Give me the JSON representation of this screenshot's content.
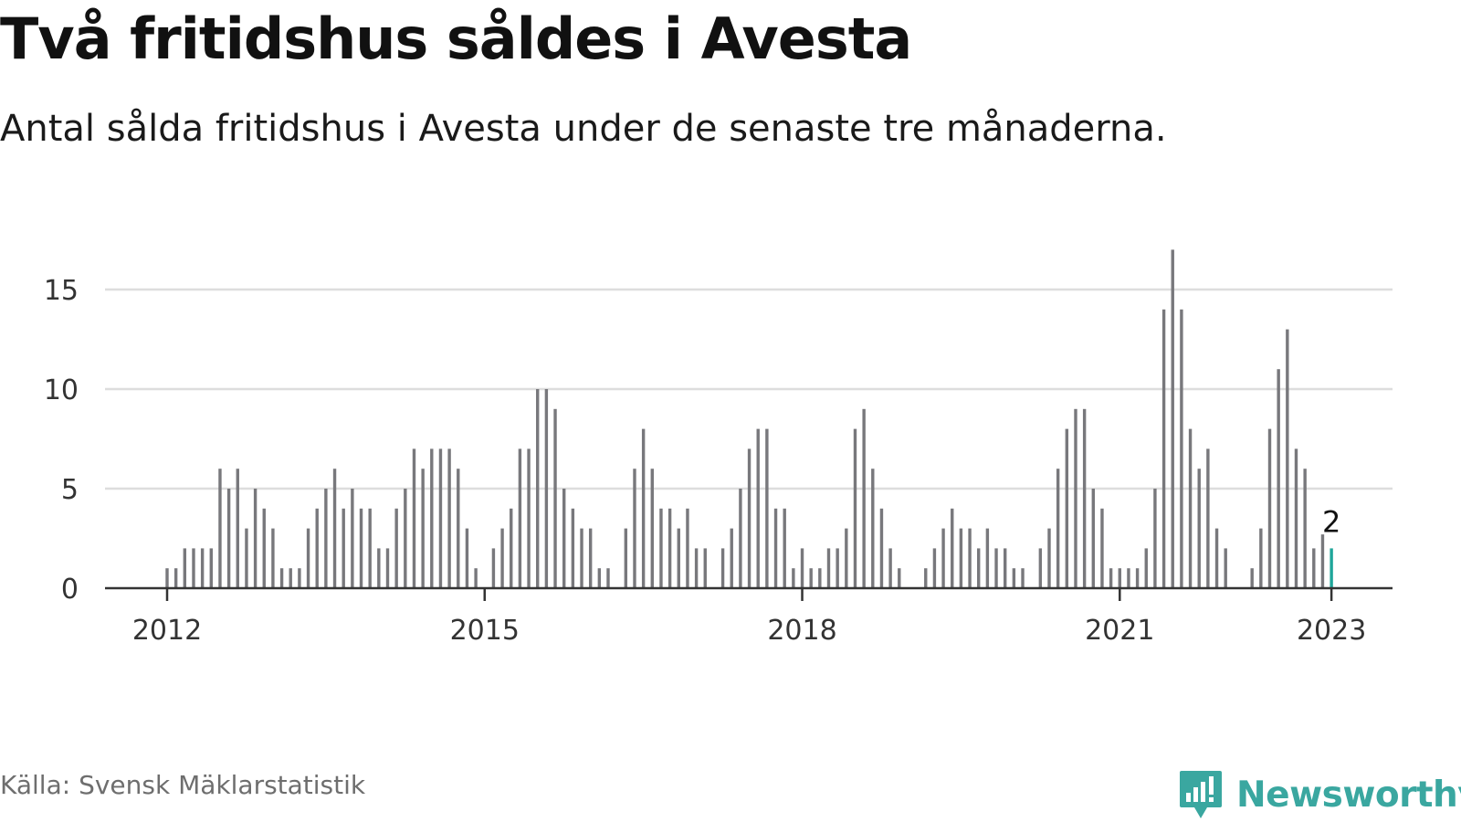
{
  "title": "Två fritidshus såldes i Avesta",
  "subtitle": "Antal sålda fritidshus i Avesta under de senaste tre månaderna.",
  "source": "Källa: Svensk Mäklarstatistik",
  "brand": {
    "name": "Newsworthy",
    "icon": "newsworthy-chart-bubble-icon",
    "color": "#3aa7a0"
  },
  "colors": {
    "bar": "#78787c",
    "highlight": "#1fa69a",
    "grid": "#dddddd",
    "axis": "#333333"
  },
  "chart_data": {
    "type": "bar",
    "title": "Två fritidshus såldes i Avesta",
    "xlabel": "",
    "ylabel": "",
    "ylim": [
      0,
      17
    ],
    "y_ticks": [
      0,
      5,
      10,
      15
    ],
    "x_ticks": [
      {
        "date": "2012-01",
        "label": "2012"
      },
      {
        "date": "2015-01",
        "label": "2015"
      },
      {
        "date": "2018-01",
        "label": "2018"
      },
      {
        "date": "2021-01",
        "label": "2021"
      },
      {
        "date": "2023-01",
        "label": "2023"
      }
    ],
    "grid": true,
    "annotation": {
      "date": "2023-01",
      "label": "2"
    },
    "highlight_date": "2023-01",
    "series": [
      {
        "values": [
          {
            "x": "2012-01",
            "y": 1
          },
          {
            "x": "2012-02",
            "y": 1
          },
          {
            "x": "2012-03",
            "y": 2
          },
          {
            "x": "2012-04",
            "y": 2
          },
          {
            "x": "2012-05",
            "y": 2
          },
          {
            "x": "2012-06",
            "y": 2
          },
          {
            "x": "2012-07",
            "y": 6
          },
          {
            "x": "2012-08",
            "y": 5
          },
          {
            "x": "2012-09",
            "y": 6
          },
          {
            "x": "2012-10",
            "y": 3
          },
          {
            "x": "2012-11",
            "y": 5
          },
          {
            "x": "2012-12",
            "y": 4
          },
          {
            "x": "2013-01",
            "y": 3
          },
          {
            "x": "2013-02",
            "y": 1
          },
          {
            "x": "2013-03",
            "y": 1
          },
          {
            "x": "2013-04",
            "y": 1
          },
          {
            "x": "2013-05",
            "y": 3
          },
          {
            "x": "2013-06",
            "y": 4
          },
          {
            "x": "2013-07",
            "y": 5
          },
          {
            "x": "2013-08",
            "y": 6
          },
          {
            "x": "2013-09",
            "y": 4
          },
          {
            "x": "2013-10",
            "y": 5
          },
          {
            "x": "2013-11",
            "y": 4
          },
          {
            "x": "2013-12",
            "y": 4
          },
          {
            "x": "2014-01",
            "y": 2
          },
          {
            "x": "2014-02",
            "y": 2
          },
          {
            "x": "2014-03",
            "y": 4
          },
          {
            "x": "2014-04",
            "y": 5
          },
          {
            "x": "2014-05",
            "y": 7
          },
          {
            "x": "2014-06",
            "y": 6
          },
          {
            "x": "2014-07",
            "y": 7
          },
          {
            "x": "2014-08",
            "y": 7
          },
          {
            "x": "2014-09",
            "y": 7
          },
          {
            "x": "2014-10",
            "y": 6
          },
          {
            "x": "2014-11",
            "y": 3
          },
          {
            "x": "2014-12",
            "y": 1
          },
          {
            "x": "2015-02",
            "y": 2
          },
          {
            "x": "2015-03",
            "y": 3
          },
          {
            "x": "2015-04",
            "y": 4
          },
          {
            "x": "2015-05",
            "y": 7
          },
          {
            "x": "2015-06",
            "y": 7
          },
          {
            "x": "2015-07",
            "y": 10
          },
          {
            "x": "2015-08",
            "y": 10
          },
          {
            "x": "2015-09",
            "y": 9
          },
          {
            "x": "2015-10",
            "y": 5
          },
          {
            "x": "2015-11",
            "y": 4
          },
          {
            "x": "2015-12",
            "y": 3
          },
          {
            "x": "2016-01",
            "y": 3
          },
          {
            "x": "2016-02",
            "y": 1
          },
          {
            "x": "2016-03",
            "y": 1
          },
          {
            "x": "2016-05",
            "y": 3
          },
          {
            "x": "2016-06",
            "y": 6
          },
          {
            "x": "2016-07",
            "y": 8
          },
          {
            "x": "2016-08",
            "y": 6
          },
          {
            "x": "2016-09",
            "y": 4
          },
          {
            "x": "2016-10",
            "y": 4
          },
          {
            "x": "2016-11",
            "y": 3
          },
          {
            "x": "2016-12",
            "y": 4
          },
          {
            "x": "2017-01",
            "y": 2
          },
          {
            "x": "2017-02",
            "y": 2
          },
          {
            "x": "2017-04",
            "y": 2
          },
          {
            "x": "2017-05",
            "y": 3
          },
          {
            "x": "2017-06",
            "y": 5
          },
          {
            "x": "2017-07",
            "y": 7
          },
          {
            "x": "2017-08",
            "y": 8
          },
          {
            "x": "2017-09",
            "y": 8
          },
          {
            "x": "2017-10",
            "y": 4
          },
          {
            "x": "2017-11",
            "y": 4
          },
          {
            "x": "2017-12",
            "y": 1
          },
          {
            "x": "2018-01",
            "y": 2
          },
          {
            "x": "2018-02",
            "y": 1
          },
          {
            "x": "2018-03",
            "y": 1
          },
          {
            "x": "2018-04",
            "y": 2
          },
          {
            "x": "2018-05",
            "y": 2
          },
          {
            "x": "2018-06",
            "y": 3
          },
          {
            "x": "2018-07",
            "y": 8
          },
          {
            "x": "2018-08",
            "y": 9
          },
          {
            "x": "2018-09",
            "y": 6
          },
          {
            "x": "2018-10",
            "y": 4
          },
          {
            "x": "2018-11",
            "y": 2
          },
          {
            "x": "2018-12",
            "y": 1
          },
          {
            "x": "2019-03",
            "y": 1
          },
          {
            "x": "2019-04",
            "y": 2
          },
          {
            "x": "2019-05",
            "y": 3
          },
          {
            "x": "2019-06",
            "y": 4
          },
          {
            "x": "2019-07",
            "y": 3
          },
          {
            "x": "2019-08",
            "y": 3
          },
          {
            "x": "2019-09",
            "y": 2
          },
          {
            "x": "2019-10",
            "y": 3
          },
          {
            "x": "2019-11",
            "y": 2
          },
          {
            "x": "2019-12",
            "y": 2
          },
          {
            "x": "2020-01",
            "y": 1
          },
          {
            "x": "2020-02",
            "y": 1
          },
          {
            "x": "2020-04",
            "y": 2
          },
          {
            "x": "2020-05",
            "y": 3
          },
          {
            "x": "2020-06",
            "y": 6
          },
          {
            "x": "2020-07",
            "y": 8
          },
          {
            "x": "2020-08",
            "y": 9
          },
          {
            "x": "2020-09",
            "y": 9
          },
          {
            "x": "2020-10",
            "y": 5
          },
          {
            "x": "2020-11",
            "y": 4
          },
          {
            "x": "2020-12",
            "y": 1
          },
          {
            "x": "2021-01",
            "y": 1
          },
          {
            "x": "2021-02",
            "y": 1
          },
          {
            "x": "2021-03",
            "y": 1
          },
          {
            "x": "2021-04",
            "y": 2
          },
          {
            "x": "2021-05",
            "y": 5
          },
          {
            "x": "2021-06",
            "y": 14
          },
          {
            "x": "2021-07",
            "y": 17
          },
          {
            "x": "2021-08",
            "y": 14
          },
          {
            "x": "2021-09",
            "y": 8
          },
          {
            "x": "2021-10",
            "y": 6
          },
          {
            "x": "2021-11",
            "y": 7
          },
          {
            "x": "2021-12",
            "y": 3
          },
          {
            "x": "2022-01",
            "y": 2
          },
          {
            "x": "2022-04",
            "y": 1
          },
          {
            "x": "2022-05",
            "y": 3
          },
          {
            "x": "2022-06",
            "y": 8
          },
          {
            "x": "2022-07",
            "y": 11
          },
          {
            "x": "2022-08",
            "y": 13
          },
          {
            "x": "2022-09",
            "y": 7
          },
          {
            "x": "2022-10",
            "y": 6
          },
          {
            "x": "2022-11",
            "y": 2
          },
          {
            "x": "2022-12",
            "y": 2.7
          },
          {
            "x": "2023-01",
            "y": 2
          }
        ]
      }
    ]
  }
}
